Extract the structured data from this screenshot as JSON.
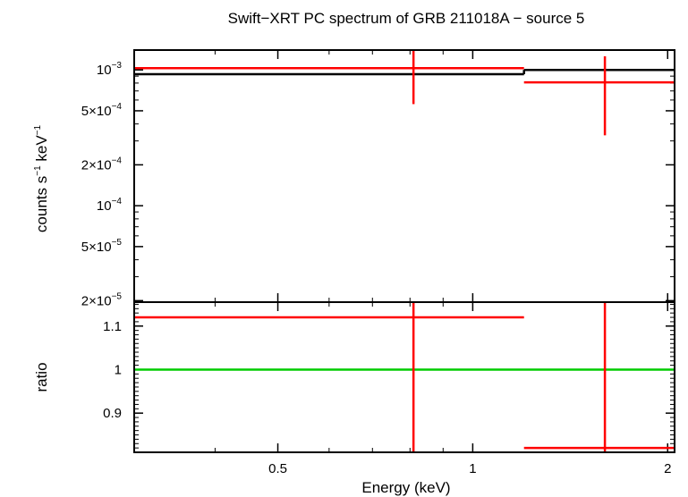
{
  "chart_data": [
    {
      "type": "scatter",
      "panel": "spectrum",
      "title": "Swift−XRT PC spectrum of GRB 211018A − source 5",
      "xlabel": "",
      "ylabel_main": "counts s",
      "ylabel_sup1": "−1",
      "ylabel_mid": " keV",
      "ylabel_sup2": "−1",
      "xscale": "log",
      "yscale": "log",
      "xlim": [
        0.3,
        2.05
      ],
      "ylim": [
        1.95e-05,
        0.0014
      ],
      "yticks": [
        {
          "value": 0.001,
          "mant": "10",
          "exp": "−3"
        },
        {
          "value": 0.0005,
          "mant": "5×10",
          "exp": "−4"
        },
        {
          "value": 0.0002,
          "mant": "2×10",
          "exp": "−4"
        },
        {
          "value": 0.0001,
          "mant": "10",
          "exp": "−4"
        },
        {
          "value": 5e-05,
          "mant": "5×10",
          "exp": "−5"
        },
        {
          "value": 2e-05,
          "mant": "2×10",
          "exp": "−5"
        }
      ],
      "series": [
        {
          "kind": "data",
          "color": "#ff0000",
          "points": [
            {
              "x": 0.81,
              "xlo": 0.3,
              "xhi": 1.2,
              "y": 0.00103,
              "ylo": 0.00056,
              "yhi": 0.0014
            },
            {
              "x": 1.6,
              "xlo": 1.2,
              "xhi": 2.05,
              "y": 0.00081,
              "ylo": 0.00033,
              "yhi": 0.00126
            }
          ]
        },
        {
          "kind": "model",
          "color": "#000000",
          "steps": [
            {
              "xlo": 0.3,
              "xhi": 1.2,
              "y": 0.00093
            },
            {
              "xlo": 1.2,
              "xhi": 2.05,
              "y": 0.001
            }
          ]
        }
      ]
    },
    {
      "type": "scatter",
      "panel": "ratio",
      "xlabel": "Energy (keV)",
      "ylabel": "ratio",
      "xscale": "log",
      "xlim": [
        0.3,
        2.05
      ],
      "ylim": [
        0.81,
        1.155
      ],
      "xticks": [
        {
          "value": 0.5,
          "label": "0.5"
        },
        {
          "value": 1,
          "label": "1"
        },
        {
          "value": 2,
          "label": "2"
        }
      ],
      "yticks": [
        {
          "value": 0.9,
          "label": "0.9"
        },
        {
          "value": 1.0,
          "label": "1"
        },
        {
          "value": 1.1,
          "label": "1.1"
        }
      ],
      "reference_line": {
        "y": 1.0,
        "color": "#00cc00"
      },
      "series": [
        {
          "kind": "data",
          "color": "#ff0000",
          "points": [
            {
              "x": 0.81,
              "xlo": 0.3,
              "xhi": 1.2,
              "y": 1.12,
              "ylo": 0.81,
              "yhi": 1.155
            },
            {
              "x": 1.6,
              "xlo": 1.2,
              "xhi": 2.05,
              "y": 0.82,
              "ylo": 0.81,
              "yhi": 1.155
            }
          ]
        }
      ]
    }
  ]
}
